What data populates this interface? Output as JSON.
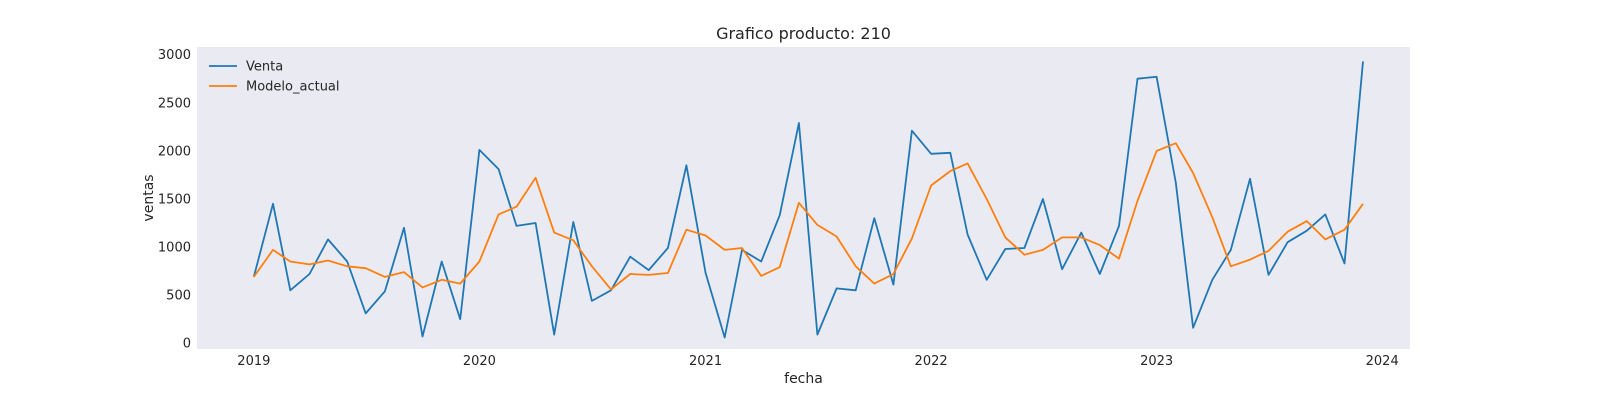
{
  "chart_data": {
    "type": "line",
    "title": "Grafico producto: 210",
    "xlabel": "fecha",
    "ylabel": "ventas",
    "ylim": [
      -60,
      3080
    ],
    "xlim": [
      "2018-10-01",
      "2024-02-15"
    ],
    "yticks": [
      0,
      500,
      1000,
      1500,
      2000,
      2500,
      3000
    ],
    "xticks": [
      "2019-01-01",
      "2020-01-01",
      "2021-01-01",
      "2022-01-01",
      "2023-01-01",
      "2024-01-01"
    ],
    "xtick_labels": [
      "2019",
      "2020",
      "2021",
      "2022",
      "2023",
      "2024"
    ],
    "grid": false,
    "background": "#eaeaf2",
    "legend_position": "upper-left",
    "x": [
      "2019-01-01",
      "2019-02-01",
      "2019-03-01",
      "2019-04-01",
      "2019-05-01",
      "2019-06-01",
      "2019-07-01",
      "2019-08-01",
      "2019-09-01",
      "2019-10-01",
      "2019-11-01",
      "2019-12-01",
      "2020-01-01",
      "2020-02-01",
      "2020-03-01",
      "2020-04-01",
      "2020-05-01",
      "2020-06-01",
      "2020-07-01",
      "2020-08-01",
      "2020-09-01",
      "2020-10-01",
      "2020-11-01",
      "2020-12-01",
      "2021-01-01",
      "2021-02-01",
      "2021-03-01",
      "2021-04-01",
      "2021-05-01",
      "2021-06-01",
      "2021-07-01",
      "2021-08-01",
      "2021-09-01",
      "2021-10-01",
      "2021-11-01",
      "2021-12-01",
      "2022-01-01",
      "2022-02-01",
      "2022-03-01",
      "2022-04-01",
      "2022-05-01",
      "2022-06-01",
      "2022-07-01",
      "2022-08-01",
      "2022-09-01",
      "2022-10-01",
      "2022-11-01",
      "2022-12-01",
      "2023-01-01",
      "2023-02-01",
      "2023-03-01",
      "2023-04-01",
      "2023-05-01",
      "2023-06-01",
      "2023-07-01",
      "2023-08-01",
      "2023-09-01",
      "2023-10-01",
      "2023-11-01",
      "2023-12-01"
    ],
    "series": [
      {
        "name": "Venta",
        "color": "#1f77b4",
        "values": [
          690,
          1450,
          550,
          720,
          1080,
          850,
          310,
          540,
          1200,
          70,
          850,
          250,
          2010,
          1810,
          1220,
          1250,
          90,
          1260,
          440,
          550,
          900,
          760,
          990,
          1850,
          730,
          60,
          970,
          850,
          1330,
          2290,
          90,
          570,
          550,
          1300,
          610,
          2210,
          1970,
          1980,
          1130,
          660,
          980,
          990,
          1500,
          770,
          1150,
          720,
          1220,
          2750,
          2770,
          1670,
          160,
          660,
          970,
          1710,
          710,
          1050,
          1170,
          1340,
          830,
          2930
        ]
      },
      {
        "name": "Modelo_actual",
        "color": "#ff7f0e",
        "values": [
          690,
          970,
          850,
          820,
          860,
          800,
          780,
          690,
          740,
          580,
          660,
          620,
          850,
          1340,
          1420,
          1720,
          1150,
          1070,
          800,
          560,
          720,
          710,
          730,
          1180,
          1120,
          970,
          990,
          700,
          790,
          1460,
          1230,
          1110,
          800,
          620,
          720,
          1090,
          1640,
          1790,
          1870,
          1500,
          1100,
          920,
          970,
          1100,
          1100,
          1020,
          880,
          1480,
          2000,
          2080,
          1770,
          1310,
          800,
          870,
          960,
          1160,
          1270,
          1080,
          1180,
          1450
        ]
      }
    ]
  }
}
